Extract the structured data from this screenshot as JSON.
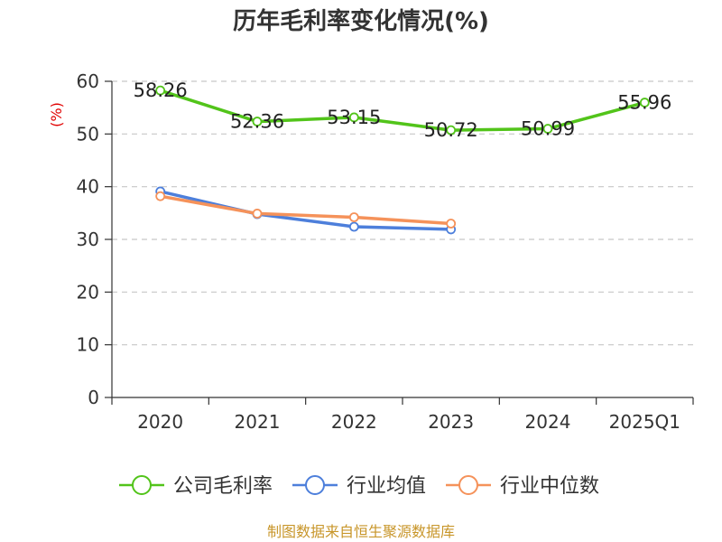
{
  "title": "历年毛利率变化情况(%)",
  "source": "制图数据来自恒生聚源数据库",
  "colors": {
    "company": "#52c41a",
    "industry_avg": "#4d7fdb",
    "industry_median": "#f5925a",
    "grid": "#c8c8c8",
    "axis": "#333333",
    "unit": "#e00000",
    "source": "#c8962a"
  },
  "chart_data": {
    "type": "line",
    "title": "历年毛利率变化情况(%)",
    "ylabel": "(%)",
    "xlabel": "",
    "categories": [
      "2020",
      "2021",
      "2022",
      "2023",
      "2024",
      "2025Q1"
    ],
    "ylim": [
      0,
      60
    ],
    "yticks": [
      0,
      10,
      20,
      30,
      40,
      50,
      60
    ],
    "grid": "horizontal dashed",
    "legend": "bottom",
    "series": [
      {
        "name": "公司毛利率",
        "color": "#52c41a",
        "values": [
          58.26,
          52.36,
          53.15,
          50.72,
          50.99,
          55.96
        ],
        "labels": [
          "58.26",
          "52.36",
          "53.15",
          "50.72",
          "50.99",
          "55.96"
        ]
      },
      {
        "name": "行业均值",
        "color": "#4d7fdb",
        "values": [
          39.1,
          34.8,
          32.4,
          31.9,
          null,
          null
        ]
      },
      {
        "name": "行业中位数",
        "color": "#f5925a",
        "values": [
          38.2,
          34.9,
          34.2,
          33.0,
          null,
          null
        ]
      }
    ]
  }
}
